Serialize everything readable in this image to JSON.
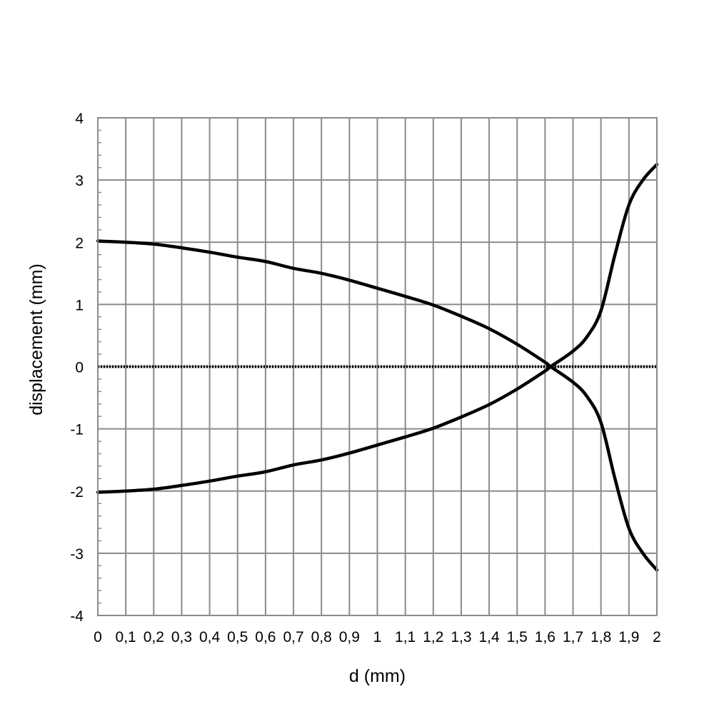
{
  "chart_data": {
    "type": "line",
    "xlabel": "d (mm)",
    "ylabel": "displacement (mm)",
    "xlim": [
      0,
      2
    ],
    "ylim": [
      -4,
      4
    ],
    "x_ticks": [
      "0",
      "0,1",
      "0,2",
      "0,3",
      "0,4",
      "0,5",
      "0,6",
      "0,7",
      "0,8",
      "0,9",
      "1",
      "1,1",
      "1,2",
      "1,3",
      "1,4",
      "1,5",
      "1,6",
      "1,7",
      "1,8",
      "1,9",
      "2"
    ],
    "y_ticks": [
      "4",
      "3",
      "2",
      "1",
      "0",
      "-1",
      "-2",
      "-3",
      "-4"
    ],
    "grid": true,
    "zero_line": "dotted",
    "series": [
      {
        "color": "#000000",
        "x": [
          0,
          0.1,
          0.2,
          0.3,
          0.4,
          0.5,
          0.6,
          0.7,
          0.8,
          0.9,
          1.0,
          1.1,
          1.2,
          1.3,
          1.4,
          1.5,
          1.6,
          1.62,
          1.7,
          1.75,
          1.8,
          1.85,
          1.9,
          1.95,
          2.0
        ],
        "y": [
          2.02,
          2.0,
          1.97,
          1.91,
          1.84,
          1.76,
          1.69,
          1.58,
          1.5,
          1.39,
          1.26,
          1.13,
          0.99,
          0.81,
          0.61,
          0.36,
          0.07,
          0.0,
          -0.25,
          -0.48,
          -0.9,
          -1.8,
          -2.6,
          -3.0,
          -3.27
        ]
      },
      {
        "color": "#000000",
        "x": [
          0,
          0.1,
          0.2,
          0.3,
          0.4,
          0.5,
          0.6,
          0.7,
          0.8,
          0.9,
          1.0,
          1.1,
          1.2,
          1.3,
          1.4,
          1.5,
          1.6,
          1.62,
          1.7,
          1.75,
          1.8,
          1.85,
          1.9,
          1.95,
          2.0
        ],
        "y": [
          -2.02,
          -2.0,
          -1.97,
          -1.91,
          -1.84,
          -1.76,
          -1.69,
          -1.58,
          -1.5,
          -1.39,
          -1.26,
          -1.13,
          -0.99,
          -0.81,
          -0.61,
          -0.36,
          -0.07,
          0.0,
          0.25,
          0.48,
          0.9,
          1.8,
          2.6,
          3.0,
          3.25
        ]
      }
    ]
  }
}
